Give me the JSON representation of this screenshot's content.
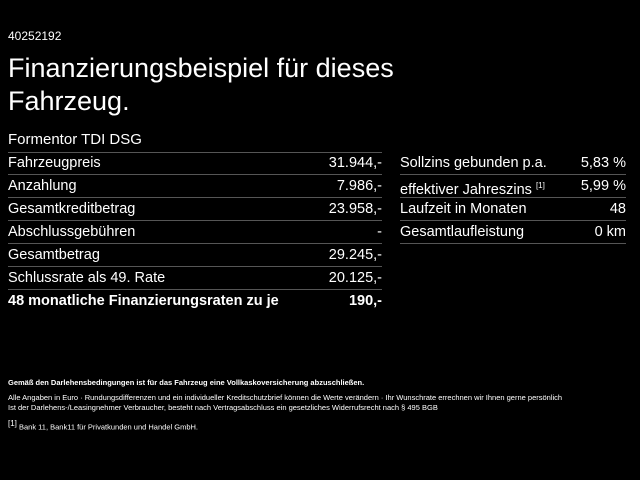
{
  "id": "40252192",
  "title": "Finanzierungsbeispiel für dieses Fahrzeug.",
  "model": "Formentor TDI DSG",
  "left_table": {
    "rows": [
      [
        "Fahrzeugpreis",
        "31.944,-"
      ],
      [
        "Anzahlung",
        "7.986,-"
      ],
      [
        "Gesamtkreditbetrag",
        "23.958,-"
      ],
      [
        "Abschlussgebühren",
        "-"
      ],
      [
        "Gesamtbetrag",
        "29.245,-"
      ],
      [
        "Schlussrate als 49. Rate",
        "20.125,-"
      ],
      [
        "48 monatliche Finanzierungsraten zu je",
        "190,-"
      ]
    ]
  },
  "right_table": {
    "rows": [
      {
        "label": "Sollzins gebunden p.a.",
        "value": "5,83 %"
      },
      {
        "label": "effektiver Jahreszins",
        "note": "[1]",
        "value": "5,99 %"
      },
      {
        "label": "Laufzeit in Monaten",
        "value": "48"
      },
      {
        "label": "Gesamtlaufleistung",
        "value": "0 km"
      }
    ]
  },
  "footer": {
    "insurance": "Gemäß den Darlehensbedingungen ist für das Fahrzeug eine Vollkaskoversicherung abzuschließen.",
    "disclaimer_1": "Alle Angaben in Euro · Rundungsdifferenzen und ein individueller Kreditschutzbrief können die Werte verändern · Ihr Wunschrate errechnen wir Ihnen gerne persönlich",
    "disclaimer_2": "Ist der Darlehens-/Leasingnehmer Verbraucher, besteht nach Vertragsabschluss ein gesetzliches Widerrufsrecht nach § 495 BGB",
    "note_marker": "[1]",
    "note_text": "Bank 11, Bank11 für Privatkunden und Handel GmbH."
  }
}
